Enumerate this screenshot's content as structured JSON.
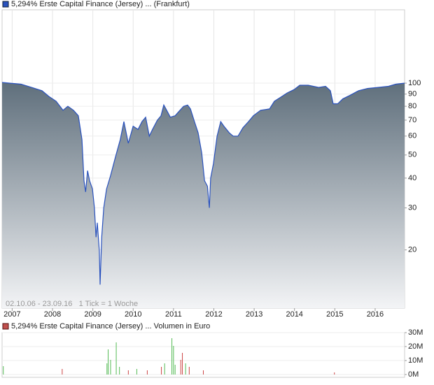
{
  "chart_data": [
    {
      "type": "line",
      "log_scale": true,
      "grid": true,
      "annotation": "02.10.06 - 23.09.16   1 Tick = 1 Woche",
      "xlim": [
        2006.75,
        2016.73
      ],
      "xticks": [
        2007,
        2008,
        2009,
        2010,
        2011,
        2012,
        2013,
        2014,
        2015,
        2016
      ],
      "ylim": [
        11.4,
        199
      ],
      "yticks": [
        20,
        30,
        40,
        50,
        60,
        70,
        80,
        90,
        100
      ],
      "x": [
        2006.75,
        2007.22,
        2007.48,
        2007.74,
        2007.91,
        2008.09,
        2008.26,
        2008.38,
        2008.52,
        2008.64,
        2008.73,
        2008.78,
        2008.82,
        2008.87,
        2008.92,
        2008.99,
        2009.04,
        2009.08,
        2009.11,
        2009.16,
        2009.18,
        2009.22,
        2009.27,
        2009.34,
        2009.44,
        2009.56,
        2009.68,
        2009.77,
        2009.88,
        2010.0,
        2010.12,
        2010.22,
        2010.31,
        2010.4,
        2010.48,
        2010.6,
        2010.69,
        2010.76,
        2010.83,
        2010.92,
        2011.04,
        2011.13,
        2011.25,
        2011.35,
        2011.42,
        2011.52,
        2011.61,
        2011.7,
        2011.77,
        2011.84,
        2011.89,
        2011.92,
        2011.99,
        2012.08,
        2012.17,
        2012.25,
        2012.38,
        2012.48,
        2012.6,
        2012.72,
        2012.86,
        2012.98,
        2013.16,
        2013.38,
        2013.5,
        2013.64,
        2013.82,
        2013.99,
        2014.13,
        2014.34,
        2014.6,
        2014.77,
        2014.89,
        2014.96,
        2015.07,
        2015.2,
        2015.38,
        2015.59,
        2015.81,
        2016.07,
        2016.33,
        2016.51,
        2016.73
      ],
      "series": [
        {
          "name": "5,294% Erste Capital Finance (Jersey) ... (Frankfurt)",
          "color": "#2a52be",
          "values": [
            100.7,
            99,
            96,
            93,
            88,
            84,
            77,
            80,
            77,
            73,
            58,
            39,
            35,
            43,
            39,
            36,
            30,
            22.6,
            26,
            19.8,
            14.3,
            22.6,
            30,
            36,
            41,
            49,
            58,
            69,
            56,
            66,
            64,
            69,
            72,
            60,
            64,
            70,
            73,
            81,
            77,
            72,
            73,
            76,
            80,
            81,
            78,
            69,
            62,
            51,
            39,
            37,
            30,
            40,
            46,
            60,
            69,
            66,
            62,
            60,
            60,
            65,
            69,
            73,
            77,
            78,
            84,
            87,
            91,
            94,
            98,
            98,
            96,
            97,
            93,
            82,
            82,
            86,
            89,
            93,
            95,
            96,
            97,
            99,
            100
          ]
        }
      ]
    },
    {
      "type": "bar",
      "grid": true,
      "xlim": [
        2006.75,
        2016.73
      ],
      "ylim": [
        0,
        30000000
      ],
      "yticks": [
        {
          "value": 0,
          "label": "0M"
        },
        {
          "value": 10000000,
          "label": "10M"
        },
        {
          "value": 20000000,
          "label": "20M"
        },
        {
          "value": 30000000,
          "label": "30M"
        }
      ],
      "x": [
        2006.78,
        2008.24,
        2009.35,
        2009.38,
        2009.44,
        2009.58,
        2009.66,
        2009.88,
        2010.09,
        2010.35,
        2010.7,
        2010.78,
        2010.96,
        2011.0,
        2011.04,
        2011.18,
        2011.22,
        2011.3,
        2011.39,
        2011.74,
        2014.99
      ],
      "series": [
        {
          "name": "5,294% Erste Capital Finance (Jersey) ... Volumen in Euro",
          "color": "#c0504d",
          "values": [
            6000000,
            4000000,
            8000000,
            18000000,
            10500000,
            23000000,
            5500000,
            3000000,
            4000000,
            3000000,
            5500000,
            8000000,
            26000000,
            20500000,
            7000000,
            10500000,
            15500000,
            8000000,
            5500000,
            3000000,
            1500000
          ],
          "colors": [
            "#55bb55",
            "#cc4444",
            "#55bb55",
            "#55bb55",
            "#55bb55",
            "#55bb55",
            "#55bb55",
            "#cc4444",
            "#55bb55",
            "#cc4444",
            "#cc4444",
            "#55bb55",
            "#55bb55",
            "#55bb55",
            "#55bb55",
            "#cc4444",
            "#cc4444",
            "#55bb55",
            "#cc4444",
            "#cc4444",
            "#cc4444"
          ]
        }
      ]
    }
  ]
}
